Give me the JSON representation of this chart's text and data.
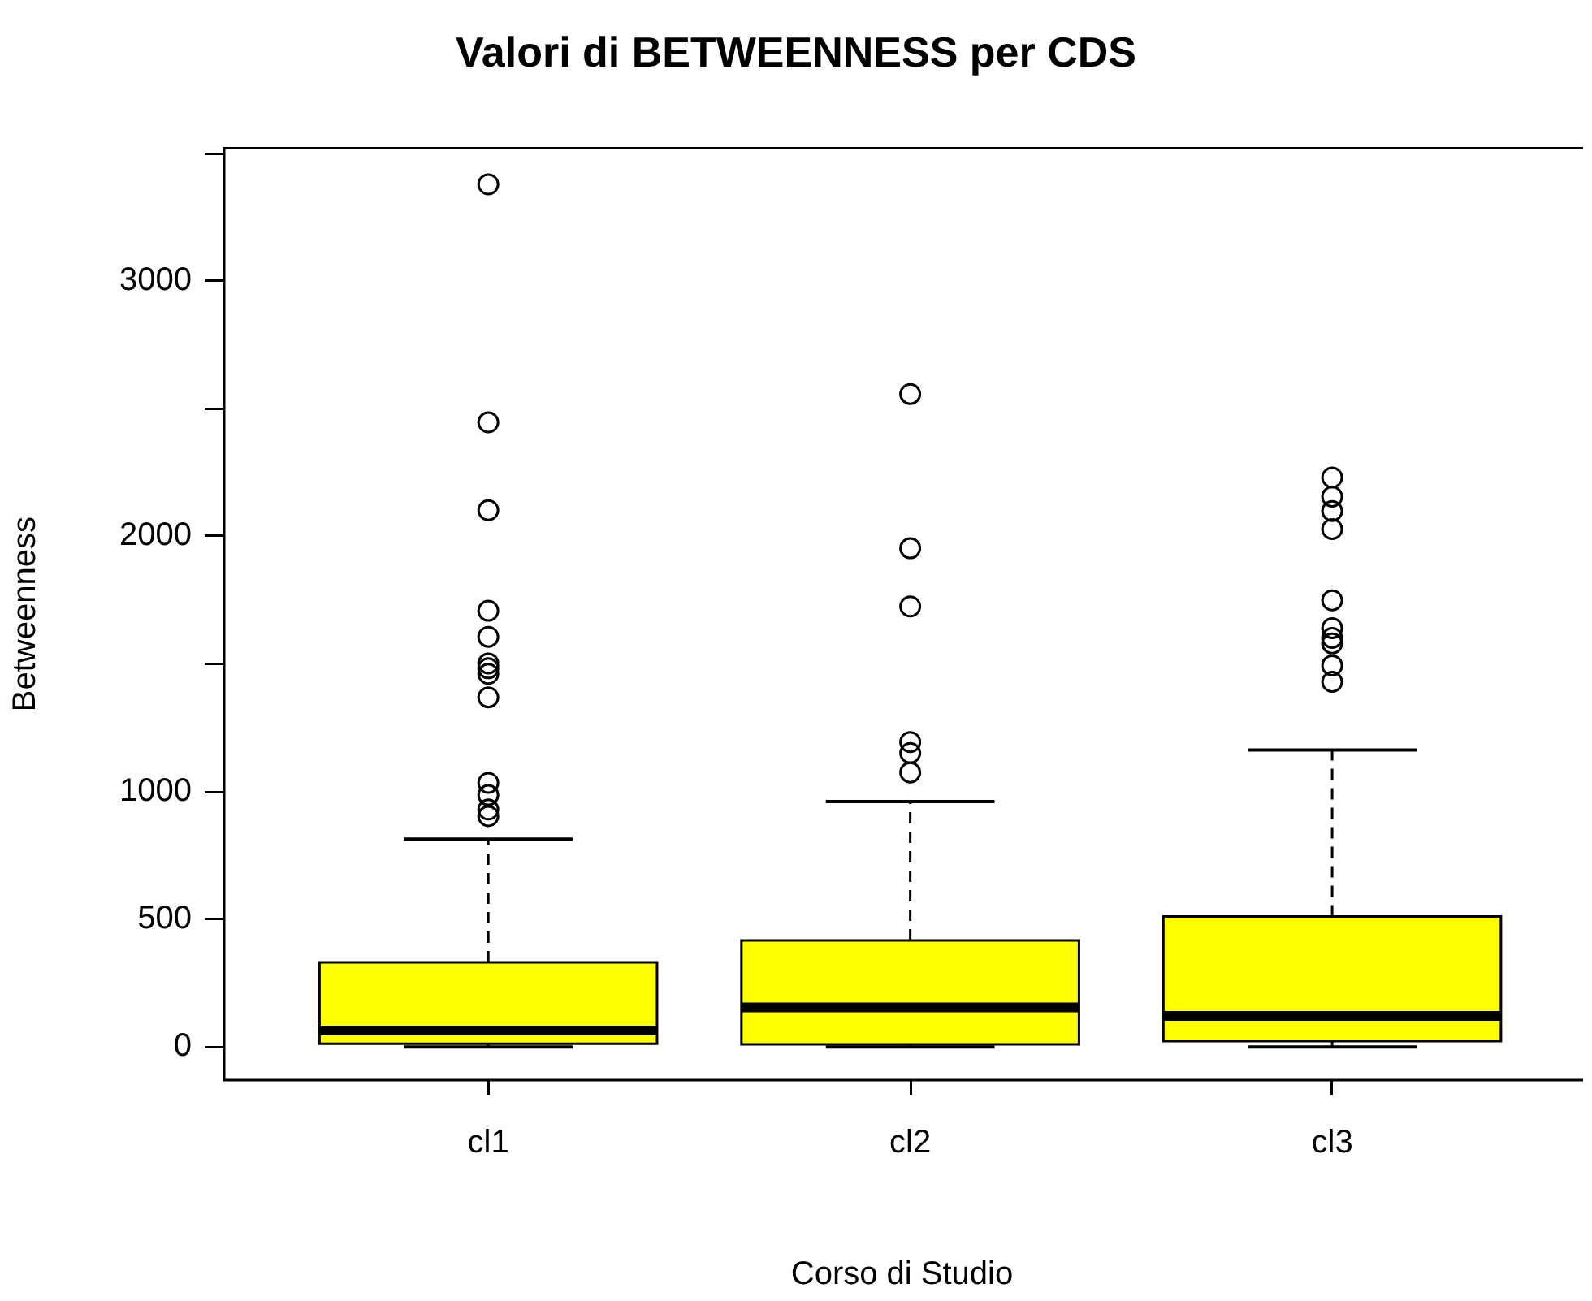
{
  "chart_data": {
    "type": "box",
    "title": "Valori di BETWEENNESS per CDS",
    "xlabel": "Corso di Studio",
    "ylabel": "Betweenness",
    "categories": [
      "cl1",
      "cl2",
      "cl3"
    ],
    "color": "#ffff00",
    "ylim": [
      -130,
      3520
    ],
    "yticks": [
      0,
      500,
      1000,
      {
        "value": 1500,
        "label": null
      },
      2000,
      {
        "value": 2500,
        "label": null
      },
      3000,
      {
        "value": 3500,
        "label": null
      }
    ],
    "boxes": [
      {
        "low": 0,
        "q1": 12,
        "median": 64,
        "q3": 331,
        "high": 814,
        "outliers": [
          3378,
          2446,
          2102,
          1708,
          1606,
          1502,
          1483,
          1461,
          1369,
          1034,
          986,
          930,
          904
        ]
      },
      {
        "low": 0,
        "q1": 10,
        "median": 155,
        "q3": 417,
        "high": 961,
        "outliers": [
          2557,
          1953,
          1725,
          1194,
          1151,
          1075
        ]
      },
      {
        "low": 0,
        "q1": 23,
        "median": 121,
        "q3": 511,
        "high": 1163,
        "outliers": [
          2230,
          2155,
          2099,
          2028,
          1749,
          1640,
          1602,
          1580,
          1494,
          1430
        ]
      }
    ]
  }
}
